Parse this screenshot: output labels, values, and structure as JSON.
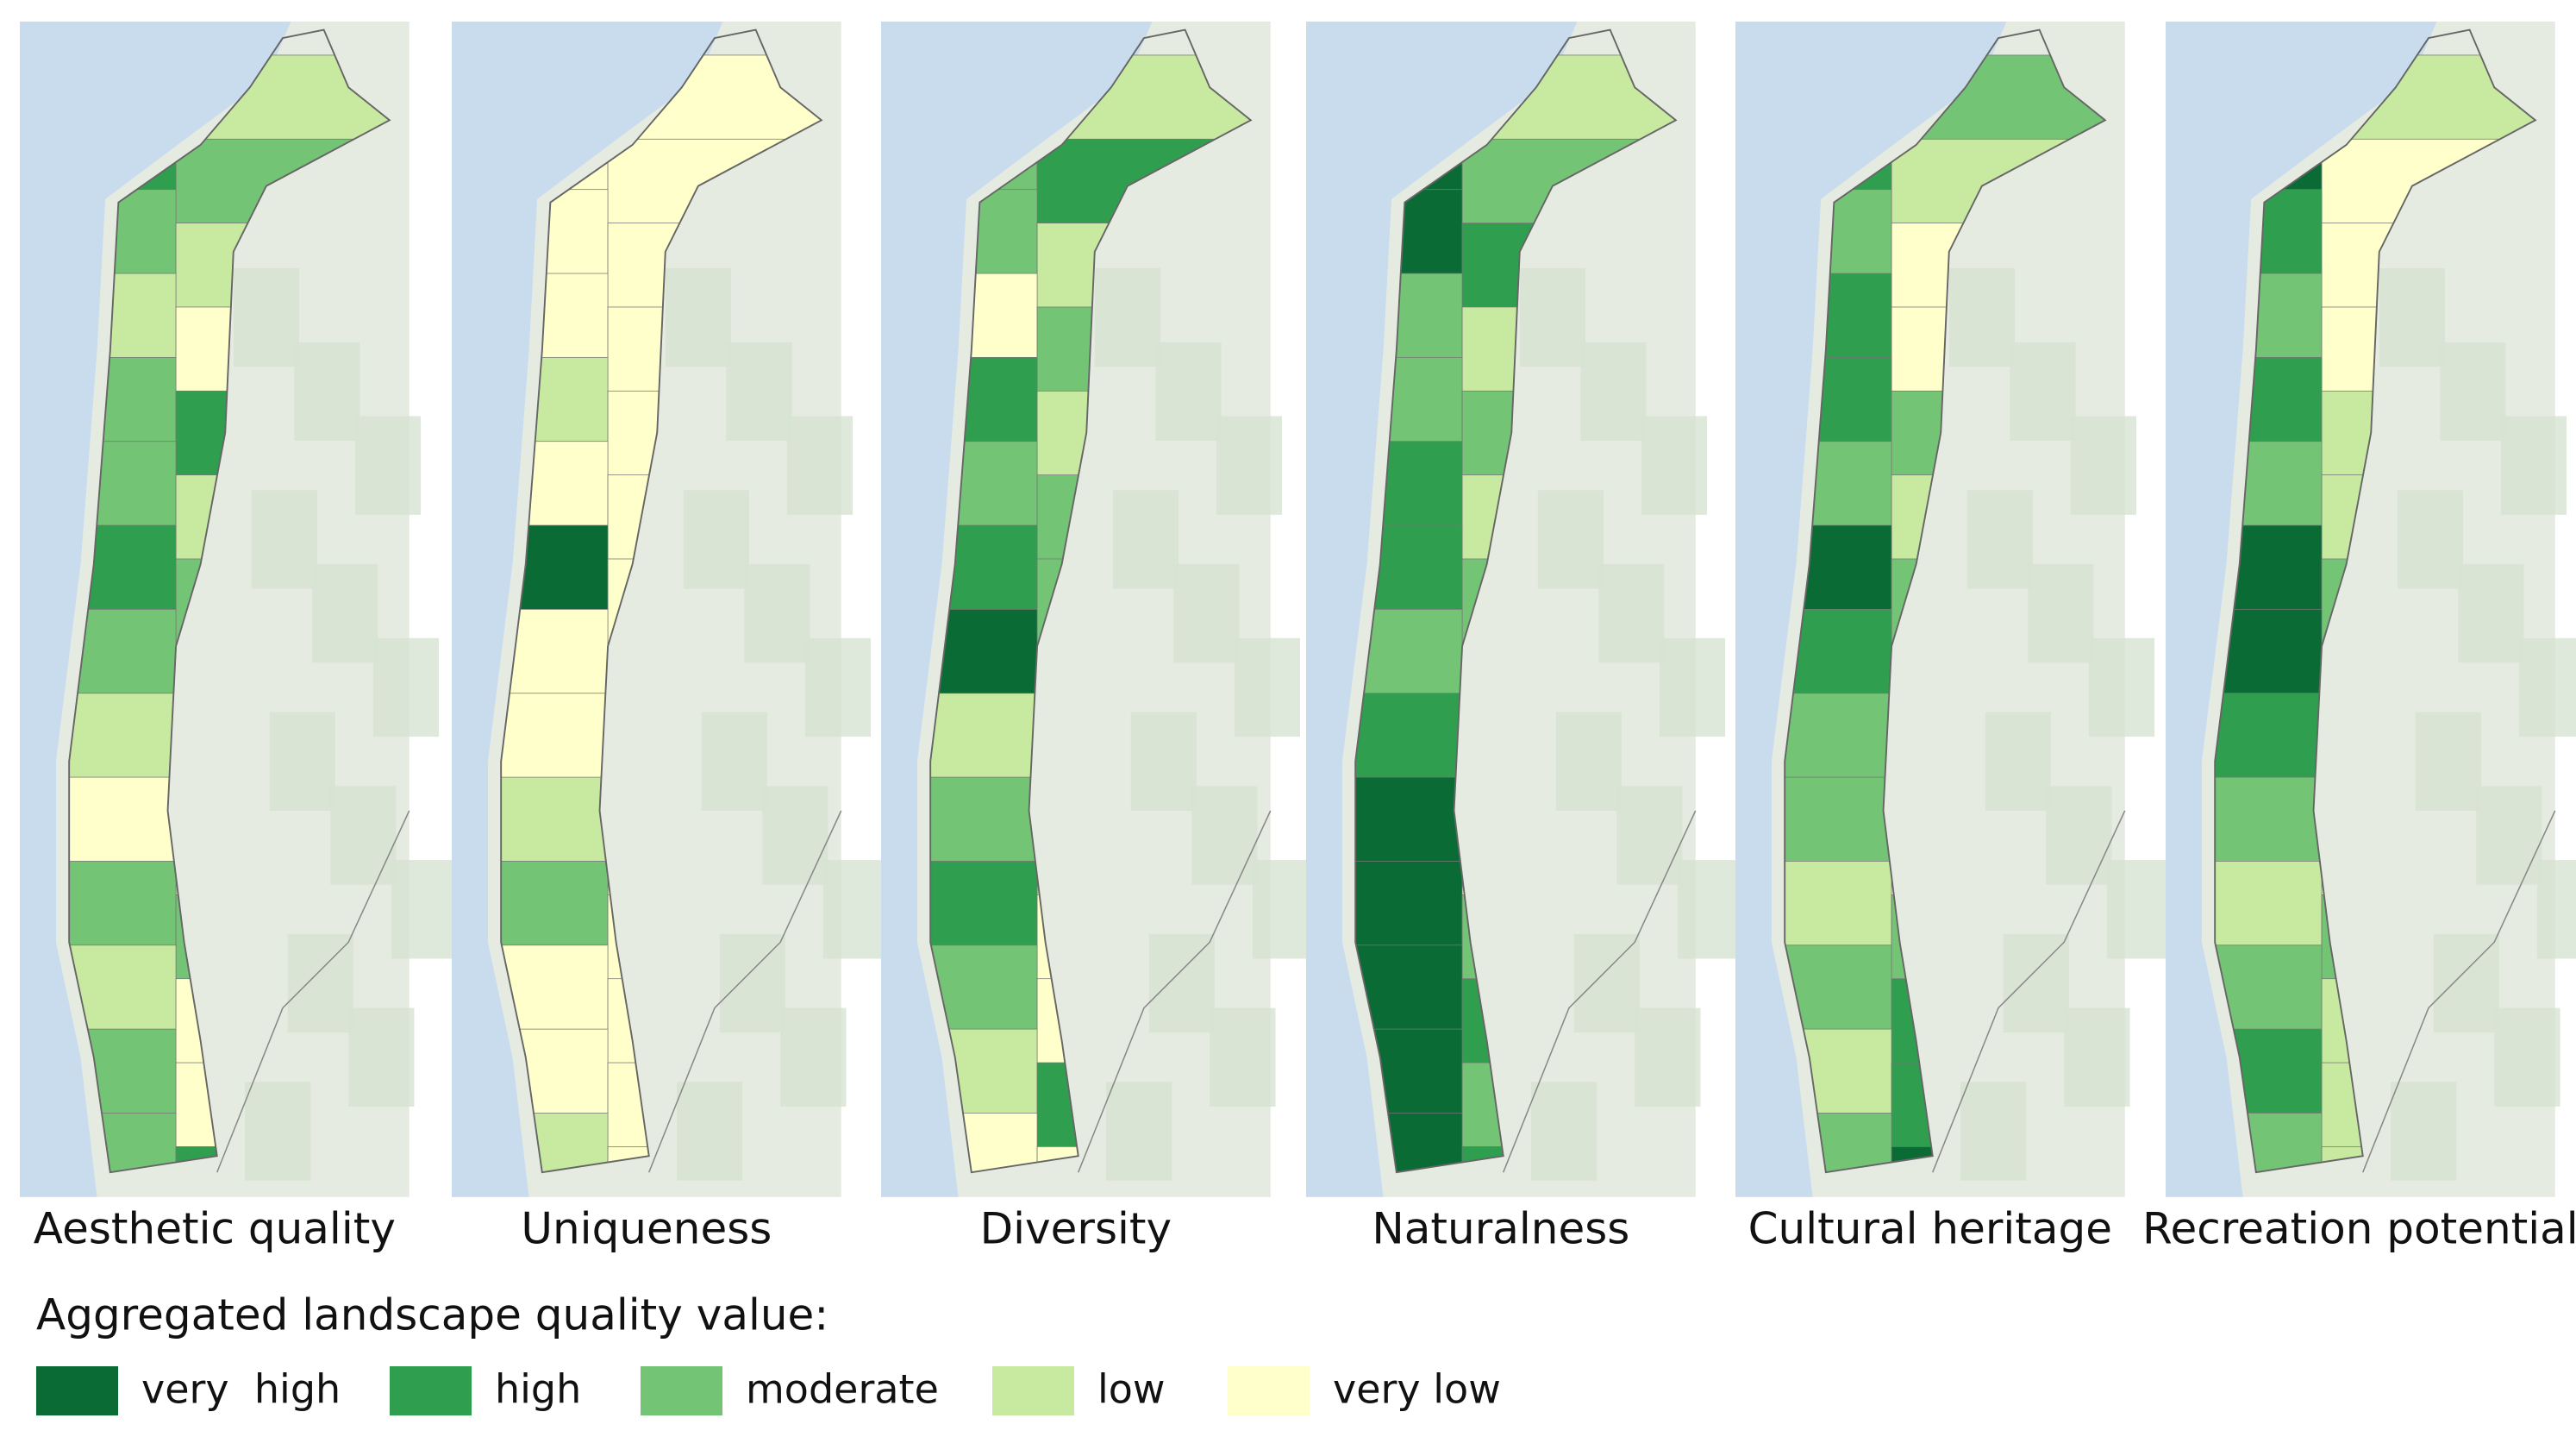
{
  "panels": [
    {
      "title": "Aesthetic quality"
    },
    {
      "title": "Uniqueness"
    },
    {
      "title": "Diversity"
    },
    {
      "title": "Naturalness"
    },
    {
      "title": "Cultural heritage"
    },
    {
      "title": "Recreation potential"
    }
  ],
  "legend": {
    "title": "Aggregated landscape quality value:",
    "items": [
      {
        "label": "very  high",
        "color": "#0b6b35"
      },
      {
        "label": "high",
        "color": "#2f9e4f"
      },
      {
        "label": "moderate",
        "color": "#74c476"
      },
      {
        "label": "low",
        "color": "#c7e9a0"
      },
      {
        "label": "very low",
        "color": "#ffffcc"
      }
    ]
  }
}
